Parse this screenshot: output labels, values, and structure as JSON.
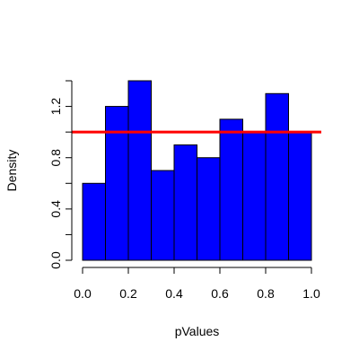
{
  "chart_data": {
    "type": "bar",
    "subtype": "histogram",
    "title": "",
    "xlabel": "pValues",
    "ylabel": "Density",
    "bins": [
      {
        "from": 0.0,
        "to": 0.1,
        "value": 0.6
      },
      {
        "from": 0.1,
        "to": 0.2,
        "value": 1.2
      },
      {
        "from": 0.2,
        "to": 0.3,
        "value": 1.4
      },
      {
        "from": 0.3,
        "to": 0.4,
        "value": 0.7
      },
      {
        "from": 0.4,
        "to": 0.5,
        "value": 0.9
      },
      {
        "from": 0.5,
        "to": 0.6,
        "value": 0.8
      },
      {
        "from": 0.6,
        "to": 0.7,
        "value": 1.1
      },
      {
        "from": 0.7,
        "to": 0.8,
        "value": 1.0
      },
      {
        "from": 0.8,
        "to": 0.9,
        "value": 1.3
      },
      {
        "from": 0.9,
        "to": 1.0,
        "value": 1.0
      }
    ],
    "xlim": [
      0.0,
      1.0
    ],
    "ylim": [
      0.0,
      1.4
    ],
    "x_ticks": [
      "0.0",
      "0.2",
      "0.4",
      "0.6",
      "0.8",
      "1.0"
    ],
    "y_ticks": [
      "0.0",
      "0.4",
      "0.8",
      "1.2"
    ],
    "y_minor_ticks": [
      "0.2",
      "0.6",
      "1.0",
      "1.4"
    ],
    "reference_line": {
      "y": 1.0,
      "color": "#ff0000"
    },
    "bar_color": "#0000ff",
    "grid": false,
    "legend": "none"
  }
}
